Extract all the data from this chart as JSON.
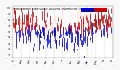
{
  "title_line1": "Milwaukee Weather Outdoor Humidity",
  "title_line2": "At Daily High Temperature (Past Year)",
  "background_color": "#f8f8f8",
  "plot_bg": "#ffffff",
  "bar_color_above": "#cc0000",
  "bar_color_below": "#0000cc",
  "legend_blue_label": "Below Avg",
  "legend_red_label": "Above Avg",
  "ylim": [
    15,
    102
  ],
  "xlim": [
    -3,
    368
  ],
  "n_days": 365,
  "seed": 42,
  "avg_humidity": 63,
  "num_gridlines": 12,
  "bar_lw": 0.55
}
